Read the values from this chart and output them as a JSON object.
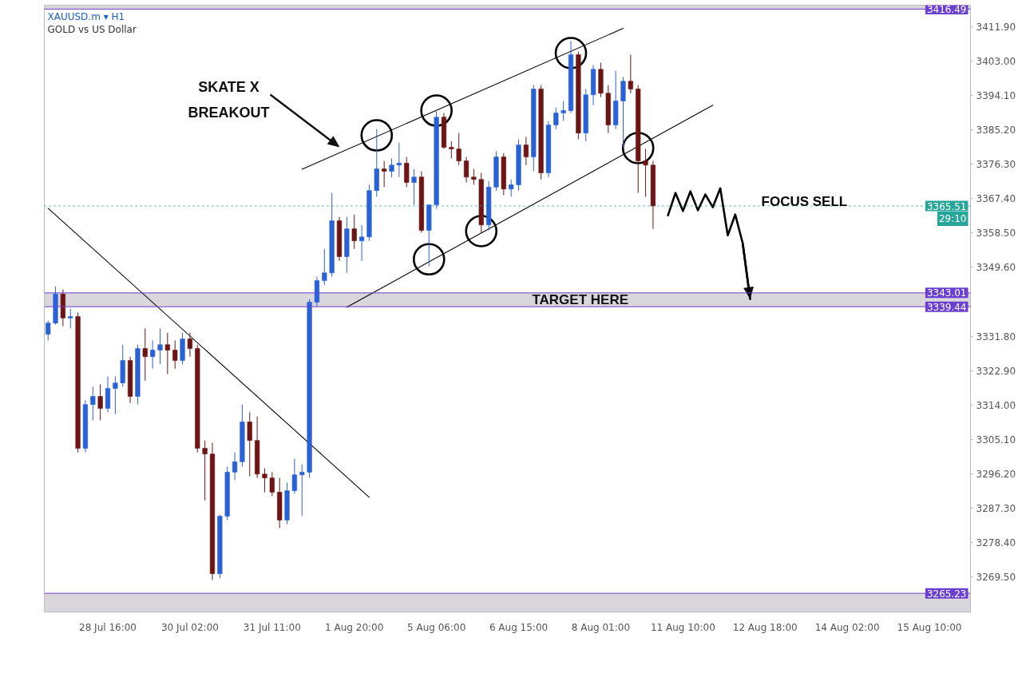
{
  "chart_data": {
    "type": "candlestick",
    "title": "XAUUSD.m ▾ H1",
    "subtitle": "GOLD vs US Dollar",
    "categories": [
      null,
      null,
      null,
      null,
      null,
      null,
      null,
      null,
      "28 Jul 16:00",
      null,
      null,
      null,
      null,
      null,
      null,
      null,
      null,
      null,
      null,
      "30 Jul 02:00",
      null,
      null,
      null,
      null,
      null,
      null,
      null,
      null,
      null,
      null,
      "31 Jul 11:00",
      null,
      null,
      null,
      null,
      null,
      null,
      null,
      null,
      null,
      null,
      "1 Aug 20:00",
      null,
      null,
      null,
      null,
      null,
      null,
      null,
      null,
      null,
      null,
      "5 Aug 06:00",
      null,
      null,
      null,
      null,
      null,
      null,
      null,
      null,
      null,
      null,
      "6 Aug 15:00",
      null,
      null,
      null,
      null,
      null,
      null,
      null,
      null,
      null,
      null,
      "8 Aug 01:00",
      null,
      null,
      null,
      null,
      null,
      null,
      null,
      null,
      null,
      null,
      "11 Aug 10:00",
      null,
      null,
      null,
      null,
      null,
      null,
      null,
      null,
      null,
      null,
      "12 Aug 18:00",
      null,
      null,
      null,
      null,
      null,
      null,
      null,
      null,
      null,
      null,
      "14 Aug 02:00",
      null,
      null,
      null,
      null,
      null,
      null,
      null,
      null,
      null,
      null,
      "15 Aug 10:00",
      null,
      null,
      null,
      null,
      null
    ],
    "ohlc": [
      [
        3332.3,
        3335.8,
        3330.7,
        3335.2
      ],
      [
        3335.2,
        3344.7,
        3334.8,
        3342.7
      ],
      [
        3342.7,
        3343.9,
        3334.4,
        3336.5
      ],
      [
        3336.5,
        3338.9,
        3333.8,
        3336.9
      ],
      [
        3336.9,
        3337.9,
        3301.7,
        3302.8
      ],
      [
        3302.8,
        3315.2,
        3301.7,
        3314.1
      ],
      [
        3314.1,
        3318.7,
        3310.0,
        3316.2
      ],
      [
        3316.2,
        3319.3,
        3310.0,
        3313.1
      ],
      [
        3313.1,
        3321.4,
        3312.1,
        3318.3
      ],
      [
        3318.3,
        3321.4,
        3311.6,
        3319.7
      ],
      [
        3319.7,
        3329.6,
        3318.7,
        3325.5
      ],
      [
        3325.5,
        3326.5,
        3314.5,
        3316.2
      ],
      [
        3316.2,
        3329.6,
        3314.1,
        3328.6
      ],
      [
        3328.6,
        3333.8,
        3320.3,
        3326.5
      ],
      [
        3326.5,
        3330.7,
        3323.4,
        3328.2
      ],
      [
        3328.2,
        3333.8,
        3324.5,
        3329.6
      ],
      [
        3329.6,
        3332.7,
        3322.0,
        3328.2
      ],
      [
        3328.2,
        3330.7,
        3323.4,
        3325.5
      ],
      [
        3325.5,
        3332.7,
        3324.5,
        3331.1
      ],
      [
        3331.1,
        3332.7,
        3326.5,
        3328.6
      ],
      [
        3328.6,
        3329.6,
        3301.7,
        3302.8
      ],
      [
        3302.8,
        3304.8,
        3289.3,
        3301.3
      ],
      [
        3301.3,
        3304.2,
        3268.7,
        3270.3
      ],
      [
        3270.3,
        3285.6,
        3269.1,
        3285.2
      ],
      [
        3285.2,
        3298.0,
        3284.2,
        3296.6
      ],
      [
        3296.6,
        3301.7,
        3294.5,
        3299.3
      ],
      [
        3299.3,
        3314.1,
        3298.0,
        3309.6
      ],
      [
        3309.6,
        3312.1,
        3295.5,
        3304.8
      ],
      [
        3304.8,
        3311.0,
        3295.1,
        3296.1
      ],
      [
        3296.1,
        3297.6,
        3291.4,
        3295.1
      ],
      [
        3295.1,
        3296.6,
        3290.4,
        3291.4
      ],
      [
        3291.4,
        3295.1,
        3282.1,
        3284.2
      ],
      [
        3284.2,
        3293.9,
        3283.1,
        3291.8
      ],
      [
        3291.8,
        3300.1,
        3291.0,
        3295.9
      ],
      [
        3295.9,
        3298.6,
        3285.2,
        3296.6
      ],
      [
        3296.6,
        3341.4,
        3295.1,
        3340.6
      ],
      [
        3340.6,
        3347.2,
        3339.4,
        3346.2
      ],
      [
        3346.2,
        3354.4,
        3345.1,
        3348.2
      ],
      [
        3348.2,
        3368.9,
        3347.2,
        3361.7
      ],
      [
        3361.7,
        3362.7,
        3351.3,
        3352.4
      ],
      [
        3352.4,
        3362.7,
        3348.2,
        3359.6
      ],
      [
        3359.6,
        3363.3,
        3354.4,
        3356.5
      ],
      [
        3356.5,
        3360.6,
        3351.3,
        3357.5
      ],
      [
        3357.5,
        3371.0,
        3356.5,
        3369.5
      ],
      [
        3369.5,
        3385.4,
        3367.9,
        3375.1
      ],
      [
        3375.1,
        3377.2,
        3370.4,
        3374.5
      ],
      [
        3374.5,
        3377.8,
        3373.0,
        3376.1
      ],
      [
        3376.1,
        3381.9,
        3373.0,
        3376.6
      ],
      [
        3376.6,
        3378.2,
        3370.4,
        3371.6
      ],
      [
        3371.6,
        3375.1,
        3365.8,
        3373.0
      ],
      [
        3373.0,
        3374.5,
        3358.6,
        3359.2
      ],
      [
        3359.2,
        3365.8,
        3349.9,
        3365.8
      ],
      [
        3365.8,
        3390.0,
        3364.8,
        3388.5
      ],
      [
        3388.5,
        3389.6,
        3380.3,
        3380.7
      ],
      [
        3380.7,
        3382.3,
        3377.8,
        3380.3
      ],
      [
        3380.3,
        3384.4,
        3376.1,
        3377.2
      ],
      [
        3377.2,
        3378.2,
        3371.6,
        3373.0
      ],
      [
        3373.0,
        3375.1,
        3371.0,
        3372.4
      ],
      [
        3372.4,
        3374.1,
        3358.4,
        3360.6
      ],
      [
        3360.6,
        3372.0,
        3359.2,
        3370.4
      ],
      [
        3370.4,
        3379.7,
        3369.5,
        3378.2
      ],
      [
        3378.2,
        3379.2,
        3368.3,
        3369.9
      ],
      [
        3369.9,
        3372.4,
        3367.9,
        3371.0
      ],
      [
        3371.0,
        3382.8,
        3369.5,
        3381.3
      ],
      [
        3381.3,
        3383.4,
        3376.1,
        3378.2
      ],
      [
        3378.2,
        3396.8,
        3374.5,
        3395.8
      ],
      [
        3395.8,
        3396.8,
        3372.4,
        3374.1
      ],
      [
        3374.1,
        3387.5,
        3373.0,
        3386.5
      ],
      [
        3386.5,
        3391.0,
        3385.4,
        3389.6
      ],
      [
        3389.6,
        3392.7,
        3387.5,
        3390.2
      ],
      [
        3390.2,
        3408.2,
        3389.6,
        3404.7
      ],
      [
        3404.7,
        3405.5,
        3382.8,
        3384.4
      ],
      [
        3384.4,
        3395.8,
        3382.3,
        3394.3
      ],
      [
        3394.3,
        3402.0,
        3391.6,
        3400.9
      ],
      [
        3400.9,
        3402.6,
        3393.7,
        3394.7
      ],
      [
        3394.7,
        3396.8,
        3384.4,
        3386.5
      ],
      [
        3386.5,
        3400.5,
        3385.4,
        3392.7
      ],
      [
        3392.7,
        3398.9,
        3380.7,
        3397.8
      ],
      [
        3397.8,
        3404.7,
        3394.7,
        3395.8
      ],
      [
        3395.8,
        3396.8,
        3368.9,
        3377.2
      ],
      [
        3377.2,
        3380.3,
        3367.9,
        3376.1
      ],
      [
        3376.1,
        3377.2,
        3359.6,
        3365.51
      ],
      null,
      null,
      null,
      null,
      null,
      null,
      null,
      null,
      null,
      null,
      null,
      null,
      null,
      null,
      null,
      null,
      null,
      null,
      null,
      null,
      null,
      null,
      null,
      null,
      null,
      null,
      null,
      null,
      null,
      null,
      null,
      null,
      null,
      null,
      null,
      null,
      null,
      null,
      null,
      null,
      null,
      null
    ],
    "colors": [
      "#2a62d6",
      "#2a62d6",
      "#6b1515",
      "#2a62d6",
      "#6b1515",
      "#2a62d6",
      "#2a62d6",
      "#6b1515",
      "#2a62d6",
      "#2a62d6",
      "#2a62d6",
      "#6b1515",
      "#2a62d6",
      "#6b1515",
      "#2a62d6",
      "#2a62d6",
      "#6b1515",
      "#6b1515",
      "#2a62d6",
      "#6b1515",
      "#6b1515",
      "#6b1515",
      "#6b1515",
      "#2a62d6",
      "#2a62d6",
      "#2a62d6",
      "#2a62d6",
      "#6b1515",
      "#6b1515",
      "#6b1515",
      "#6b1515",
      "#6b1515",
      "#2a62d6",
      "#2a62d6",
      "#2a62d6",
      "#2a62d6",
      "#2a62d6",
      "#2a62d6",
      "#2a62d6",
      "#6b1515",
      "#2a62d6",
      "#6b1515",
      "#2a62d6",
      "#2a62d6",
      "#2a62d6",
      "#6b1515",
      "#2a62d6",
      "#2a62d6",
      "#6b1515",
      "#2a62d6",
      "#6b1515",
      "#2a62d6",
      "#2a62d6",
      "#6b1515",
      "#6b1515",
      "#6b1515",
      "#6b1515",
      "#6b1515",
      "#6b1515",
      "#2a62d6",
      "#2a62d6",
      "#6b1515",
      "#2a62d6",
      "#2a62d6",
      "#6b1515",
      "#2a62d6",
      "#6b1515",
      "#2a62d6",
      "#2a62d6",
      "#2a62d6",
      "#2a62d6",
      "#6b1515",
      "#2a62d6",
      "#2a62d6",
      "#6b1515",
      "#6b1515",
      "#2a62d6",
      "#2a62d6",
      "#6b1515",
      "#6b1515",
      "#6b1515",
      "#6b1515",
      null,
      null,
      null,
      null,
      null,
      null,
      null,
      null,
      null,
      null,
      null,
      null,
      null,
      null,
      null,
      null,
      null,
      null,
      null,
      null,
      null,
      null,
      null,
      null,
      null,
      null,
      null,
      null,
      null,
      null,
      null,
      null,
      null,
      null,
      null,
      null,
      null,
      null,
      null,
      null,
      null,
      null
    ],
    "ylim": [
      3260.4,
      3417.5
    ],
    "yticks": [
      {
        "value": 3411.9,
        "label": "3411.90"
      },
      {
        "value": 3403.0,
        "label": "3403.00"
      },
      {
        "value": 3394.1,
        "label": "3394.10"
      },
      {
        "value": 3385.2,
        "label": "3385.20"
      },
      {
        "value": 3376.3,
        "label": "3376.30"
      },
      {
        "value": 3367.4,
        "label": "3367.40"
      },
      {
        "value": 3358.5,
        "label": "3358.50"
      },
      {
        "value": 3349.6,
        "label": "3349.60"
      },
      {
        "value": 3331.8,
        "label": "3331.80"
      },
      {
        "value": 3322.9,
        "label": "3322.90"
      },
      {
        "value": 3314.0,
        "label": "3314.00"
      },
      {
        "value": 3305.1,
        "label": "3305.10"
      },
      {
        "value": 3296.2,
        "label": "3296.20"
      },
      {
        "value": 3287.3,
        "label": "3287.30"
      },
      {
        "value": 3278.4,
        "label": "3278.40"
      },
      {
        "value": 3269.5,
        "label": "3269.50"
      }
    ],
    "series": [
      {
        "type": "line",
        "color": "#000000",
        "values": [
          3364.9,
          null,
          null,
          null,
          null,
          null,
          null,
          null,
          null,
          null,
          null,
          null,
          null,
          null,
          null,
          null,
          null,
          null,
          null,
          null,
          null,
          null,
          null,
          null,
          null,
          null,
          null,
          null,
          null,
          null,
          null,
          null,
          null,
          null,
          null,
          null,
          null,
          null,
          null,
          null,
          null,
          null,
          null,
          3290.1,
          null,
          null,
          null,
          null,
          null,
          null,
          null,
          null,
          null,
          null,
          null,
          null,
          null,
          null,
          null,
          null,
          null,
          null,
          null,
          null,
          null,
          null,
          null,
          null,
          null,
          null,
          null,
          null,
          null,
          null,
          null,
          null,
          null,
          null,
          null,
          null,
          null,
          null,
          null,
          null,
          null,
          null,
          null,
          null,
          null,
          null,
          null,
          null,
          null,
          null,
          null,
          null,
          null,
          null,
          null,
          null,
          null,
          null,
          null,
          null,
          null,
          null,
          null,
          null,
          null,
          null,
          null,
          null,
          null,
          null,
          null,
          null,
          null,
          null,
          null,
          null,
          null,
          null,
          null,
          null
        ]
      },
      {
        "type": "line",
        "color": "#000000",
        "values": [
          null,
          null,
          null,
          null,
          null,
          null,
          null,
          null,
          null,
          null,
          null,
          null,
          null,
          null,
          null,
          null,
          null,
          null,
          null,
          null,
          null,
          null,
          null,
          null,
          null,
          null,
          null,
          null,
          null,
          null,
          null,
          null,
          null,
          null,
          3375.0,
          null,
          null,
          null,
          null,
          null,
          null,
          null,
          null,
          null,
          null,
          null,
          null,
          null,
          null,
          null,
          null,
          null,
          null,
          null,
          null,
          null,
          null,
          null,
          null,
          null,
          null,
          null,
          null,
          null,
          null,
          null,
          null,
          null,
          null,
          null,
          null,
          null,
          null,
          null,
          null,
          null,
          null,
          3411.5,
          null,
          null,
          null,
          null,
          null,
          null,
          null,
          null,
          null,
          null,
          null,
          null,
          null,
          null,
          null,
          null,
          null,
          null,
          null,
          null,
          null,
          null,
          null,
          null,
          null,
          null,
          null,
          null,
          null,
          null,
          null,
          null,
          null,
          null,
          null,
          null,
          null,
          null,
          null,
          null,
          null,
          null,
          null,
          null,
          null,
          null
        ]
      },
      {
        "type": "line",
        "color": "#000000",
        "values": [
          null,
          null,
          null,
          null,
          null,
          null,
          null,
          null,
          null,
          null,
          null,
          null,
          null,
          null,
          null,
          null,
          null,
          null,
          null,
          null,
          null,
          null,
          null,
          null,
          null,
          null,
          null,
          null,
          null,
          null,
          null,
          null,
          null,
          null,
          null,
          null,
          null,
          null,
          null,
          null,
          3339.3,
          null,
          null,
          null,
          null,
          null,
          null,
          null,
          null,
          null,
          null,
          null,
          null,
          null,
          null,
          null,
          null,
          null,
          null,
          null,
          null,
          null,
          null,
          null,
          null,
          null,
          null,
          null,
          null,
          null,
          null,
          null,
          null,
          null,
          null,
          null,
          null,
          null,
          null,
          null,
          null,
          null,
          null,
          null,
          null,
          null,
          null,
          null,
          null,
          3391.6,
          null,
          null,
          null,
          null,
          null,
          null,
          null,
          null,
          null,
          null,
          null,
          null,
          null,
          null,
          null,
          null,
          null,
          null,
          null,
          null,
          null,
          null,
          null,
          null,
          null,
          null,
          null,
          null,
          null,
          null,
          null,
          null,
          null,
          null
        ]
      },
      {
        "type": "scatter",
        "color": "#000000",
        "marker": "circle",
        "values": [
          null,
          null,
          null,
          null,
          null,
          null,
          null,
          null,
          null,
          null,
          null,
          null,
          null,
          null,
          null,
          null,
          null,
          null,
          null,
          null,
          null,
          null,
          null,
          null,
          null,
          null,
          null,
          null,
          null,
          null,
          null,
          null,
          null,
          null,
          null,
          null,
          null,
          null,
          null,
          null,
          null,
          null,
          null,
          null,
          3383.8,
          null,
          null,
          null,
          null,
          null,
          null,
          3351.7,
          3390.2,
          null,
          null,
          null,
          null,
          null,
          3359.0,
          null,
          null,
          null,
          null,
          null,
          null,
          null,
          null,
          null,
          null,
          null,
          3405.1,
          null,
          null,
          null,
          null,
          null,
          null,
          null,
          null,
          3380.5,
          null,
          null,
          null,
          null,
          null,
          null,
          null,
          null,
          null,
          null,
          null,
          null,
          null,
          null,
          null,
          null,
          null,
          null,
          null,
          null,
          null,
          null,
          null,
          null,
          null,
          null,
          null,
          null,
          null,
          null,
          null,
          null,
          null,
          null,
          null,
          null,
          null,
          null,
          null,
          null,
          null,
          null,
          null,
          null
        ]
      },
      {
        "type": "line",
        "name": "FOCUS SELL",
        "color": "#000000",
        "values": [
          null,
          null,
          null,
          null,
          null,
          null,
          null,
          null,
          null,
          null,
          null,
          null,
          null,
          null,
          null,
          null,
          null,
          null,
          null,
          null,
          null,
          null,
          null,
          null,
          null,
          null,
          null,
          null,
          null,
          null,
          null,
          null,
          null,
          null,
          null,
          null,
          null,
          null,
          null,
          null,
          null,
          null,
          null,
          null,
          null,
          null,
          null,
          null,
          null,
          null,
          null,
          null,
          null,
          null,
          null,
          null,
          null,
          null,
          null,
          null,
          null,
          null,
          null,
          null,
          null,
          null,
          null,
          null,
          null,
          null,
          null,
          null,
          null,
          null,
          null,
          null,
          null,
          null,
          null,
          null,
          null,
          null,
          null,
          3363.1,
          3368.9,
          3364.2,
          3369.3,
          3364.4,
          3368.5,
          3365.2,
          3370.1,
          3357.9,
          3363.3,
          3355.9,
          3341.4,
          null,
          null,
          null,
          null,
          null,
          null,
          null,
          null,
          null,
          null,
          null,
          null,
          null,
          null,
          null,
          null,
          null,
          null,
          null,
          null,
          null,
          null,
          null,
          null,
          null,
          null,
          null,
          null,
          null
        ]
      }
    ],
    "ref_lines": [
      {
        "axis": "y",
        "value": 3416.49,
        "label": "3416.49",
        "color": "#6a3fd0"
      },
      {
        "axis": "y",
        "value": 3343.01,
        "label": "3343.01",
        "color": "#6a3fd0"
      },
      {
        "axis": "y",
        "value": 3339.44,
        "label": "3339.44",
        "color": "#6a3fd0"
      },
      {
        "axis": "y",
        "value": 3265.23,
        "label": "3265.23",
        "color": "#6a3fd0"
      },
      {
        "axis": "y",
        "value": 3365.51,
        "label": "3365.51\n29:10",
        "color": "#26a69a",
        "line_style": "dotted"
      }
    ],
    "bands": [
      {
        "axis": "y",
        "from": 3339.44,
        "to": 3343.01,
        "label": "TARGET HERE",
        "color": "#d9d6dc"
      },
      {
        "axis": "y",
        "from": 3416.49,
        "to": 3417.5,
        "color": "#d9d6dc"
      },
      {
        "axis": "y",
        "from": 3260.4,
        "to": 3265.23,
        "color": "#d9d6dc"
      }
    ],
    "annotations": [
      "SKATE X\nBREAKOUT"
    ]
  }
}
